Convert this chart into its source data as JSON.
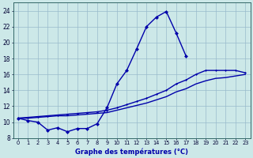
{
  "xlabel": "Graphe des températures (°C)",
  "hours": [
    0,
    1,
    2,
    3,
    4,
    5,
    6,
    7,
    8,
    9,
    10,
    11,
    12,
    13,
    14,
    15,
    16,
    17,
    18,
    19,
    20,
    21,
    22,
    23
  ],
  "temp_actual": [
    10.5,
    10.2,
    10.0,
    9.0,
    9.3,
    8.8,
    9.2,
    9.2,
    9.8,
    11.8,
    14.8,
    16.5,
    19.2,
    22.0,
    23.2,
    23.9,
    21.2,
    18.3
  ],
  "trend_high": [
    10.5,
    10.6,
    10.7,
    10.8,
    10.9,
    11.0,
    11.1,
    11.2,
    11.3,
    11.5,
    11.8,
    12.2,
    12.6,
    13.0,
    13.5,
    14.0,
    14.8,
    15.3,
    16.0,
    16.5,
    16.5,
    16.5,
    16.5,
    16.2
  ],
  "trend_low": [
    10.5,
    10.5,
    10.6,
    10.7,
    10.8,
    10.8,
    10.9,
    11.0,
    11.1,
    11.2,
    11.5,
    11.8,
    12.1,
    12.4,
    12.8,
    13.2,
    13.8,
    14.2,
    14.8,
    15.2,
    15.5,
    15.6,
    15.8,
    16.0
  ],
  "ylim_min": 8,
  "ylim_max": 25,
  "yticks": [
    8,
    10,
    12,
    14,
    16,
    18,
    20,
    22,
    24
  ],
  "bg_color": "#cce8e8",
  "line_color": "#0000aa",
  "grid_color": "#99bbcc",
  "marker_size": 2.5,
  "lw": 1.0
}
